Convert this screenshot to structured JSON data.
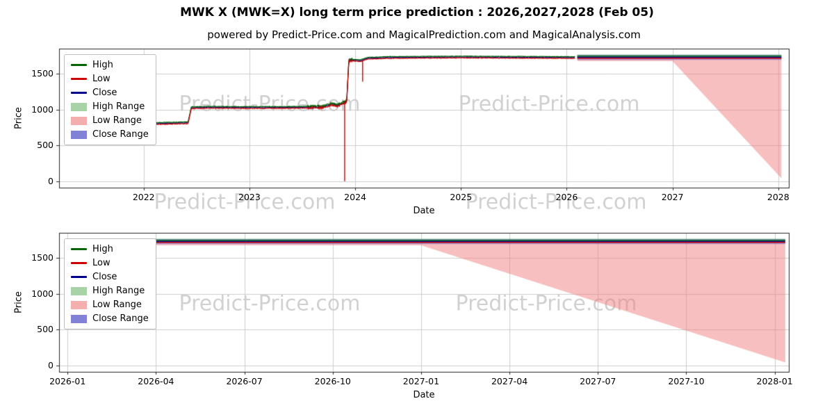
{
  "figure": {
    "title": "MWK X (MWK=X) long term price prediction : 2026,2027,2028 (Feb 05)",
    "subtitle": "powered by Predict-Price.com and MagicalPrediction.com and MagicalAnalysis.com",
    "watermark_text": "Predict-Price.com",
    "colors": {
      "background": "#ffffff",
      "high_line": "#006400",
      "low_line": "#cc0000",
      "close_line": "#00008b",
      "high_range_fill": "rgba(121,199,121,0.55)",
      "low_range_fill": "rgba(240,128,128,0.5)",
      "close_range_fill": "rgba(88,88,214,0.5)",
      "grid": "#cccccc",
      "spine": "#262626",
      "watermark": "rgba(90,90,90,0.28)"
    }
  },
  "legend": {
    "entries": [
      {
        "label": "High",
        "swatch": "line",
        "color": "#006400"
      },
      {
        "label": "Low",
        "swatch": "line",
        "color": "#cc0000"
      },
      {
        "label": "Close",
        "swatch": "line",
        "color": "#00008b"
      },
      {
        "label": "High Range",
        "swatch": "band",
        "color": "#a7d3a7"
      },
      {
        "label": "Low Range",
        "swatch": "band",
        "color": "#f3aeae"
      },
      {
        "label": "Close Range",
        "swatch": "band",
        "color": "#8181d6"
      }
    ]
  },
  "chart_data": [
    {
      "type": "line",
      "title": "powered by Predict-Price.com and MagicalPrediction.com and MagicalAnalysis.com",
      "xlabel": "Date",
      "ylabel": "Price",
      "xlim": [
        2021.2,
        2028.1
      ],
      "ylim": [
        -90,
        1850
      ],
      "grid": true,
      "legend_position": "upper-left",
      "xticks": [
        {
          "v": 2022,
          "label": "2022"
        },
        {
          "v": 2023,
          "label": "2023"
        },
        {
          "v": 2024,
          "label": "2024"
        },
        {
          "v": 2025,
          "label": "2025"
        },
        {
          "v": 2026,
          "label": "2026"
        },
        {
          "v": 2027,
          "label": "2027"
        },
        {
          "v": 2028,
          "label": "2028"
        }
      ],
      "yticks": [
        {
          "v": 0,
          "label": "0"
        },
        {
          "v": 500,
          "label": "500"
        },
        {
          "v": 1000,
          "label": "1000"
        },
        {
          "v": 1500,
          "label": "1500"
        }
      ],
      "series": {
        "history": {
          "base_points": [
            [
              2021.55,
              795
            ],
            [
              2022.0,
              800
            ],
            [
              2022.2,
              808
            ],
            [
              2022.42,
              815
            ],
            [
              2022.45,
              1025
            ],
            [
              2022.6,
              1032
            ],
            [
              2023.0,
              1028
            ],
            [
              2023.4,
              1030
            ],
            [
              2023.7,
              1038
            ],
            [
              2023.78,
              1075
            ],
            [
              2023.83,
              1058
            ],
            [
              2023.88,
              1088
            ],
            [
              2023.92,
              1115
            ],
            [
              2023.94,
              1690
            ],
            [
              2024.0,
              1688
            ],
            [
              2024.05,
              1682
            ],
            [
              2024.12,
              1716
            ],
            [
              2024.3,
              1726
            ],
            [
              2024.6,
              1730
            ],
            [
              2025.0,
              1733
            ],
            [
              2025.5,
              1730
            ],
            [
              2026.08,
              1726
            ]
          ],
          "high_offset": 12,
          "low_offset": 12,
          "noise_zones": [
            {
              "from": 2021.5,
              "to": 2023.55,
              "amp": 9
            },
            {
              "from": 2023.55,
              "to": 2023.97,
              "amp": 26
            },
            {
              "from": 2023.97,
              "to": 2026.12,
              "amp": 7
            }
          ],
          "low_spikes": [
            [
              2023.9,
              0
            ],
            [
              2024.07,
              1390
            ]
          ]
        },
        "prediction": {
          "x_start": 2026.1,
          "x_end": 2028.03,
          "high": 1745,
          "close": 1730,
          "low": 1716,
          "high_range": [
            1710,
            1770
          ],
          "close_range": [
            1693,
            1763
          ],
          "low_range": {
            "top": 1735,
            "bottom_start": 1675,
            "fan_start_x": 2027.0,
            "bottom_end": 40
          }
        }
      }
    },
    {
      "type": "line",
      "xlabel": "Date",
      "ylabel": "Price",
      "xlim": [
        2025.976,
        2028.04
      ],
      "ylim": [
        -90,
        1850
      ],
      "grid": true,
      "legend_position": "upper-left",
      "xticks": [
        {
          "v": 2026.0,
          "label": "2026-01"
        },
        {
          "v": 2026.25,
          "label": "2026-04"
        },
        {
          "v": 2026.5,
          "label": "2026-07"
        },
        {
          "v": 2026.75,
          "label": "2026-10"
        },
        {
          "v": 2027.0,
          "label": "2027-01"
        },
        {
          "v": 2027.25,
          "label": "2027-04"
        },
        {
          "v": 2027.5,
          "label": "2027-07"
        },
        {
          "v": 2027.75,
          "label": "2027-10"
        },
        {
          "v": 2028.0,
          "label": "2028-01"
        }
      ],
      "yticks": [
        {
          "v": 0,
          "label": "0"
        },
        {
          "v": 500,
          "label": "500"
        },
        {
          "v": 1000,
          "label": "1000"
        },
        {
          "v": 1500,
          "label": "1500"
        }
      ],
      "series": {
        "prediction": {
          "x_start": 2026.1,
          "x_end": 2028.03,
          "high": 1745,
          "close": 1730,
          "low": 1716,
          "high_range": [
            1710,
            1770
          ],
          "close_range": [
            1693,
            1763
          ],
          "low_range": {
            "top": 1735,
            "bottom_start": 1675,
            "fan_start_x": 2027.0,
            "bottom_end": 40
          }
        }
      }
    }
  ]
}
